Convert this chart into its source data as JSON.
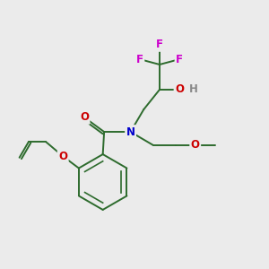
{
  "bg_color": "#ebebeb",
  "bond_color": "#2d6b2d",
  "bond_width": 1.4,
  "atom_colors": {
    "F": "#cc00cc",
    "O": "#cc0000",
    "N": "#0000cc",
    "H": "#888888",
    "C": "#2d6b2d"
  },
  "font_size": 8.5,
  "fig_size": [
    3.0,
    3.0
  ],
  "dpi": 100
}
